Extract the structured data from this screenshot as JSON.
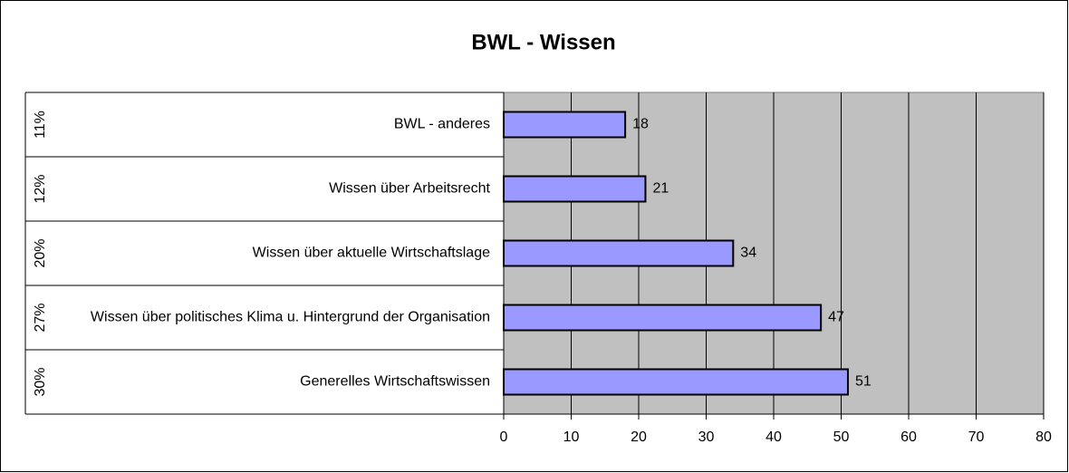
{
  "chart_data": {
    "type": "bar",
    "orientation": "horizontal",
    "title": "BWL - Wissen",
    "categories": [
      "BWL - anderes",
      "Wissen über Arbeitsrecht",
      "Wissen über aktuelle Wirtschaftslage",
      "Wissen über politisches Klima u. Hintergrund der Organisation",
      "Generelles Wirtschaftswissen"
    ],
    "group_labels": [
      "11%",
      "12%",
      "20%",
      "27%",
      "30%"
    ],
    "values": [
      18,
      21,
      34,
      47,
      51
    ],
    "color": "#9999ff",
    "xlim": [
      0,
      80
    ],
    "xticks": [
      0,
      10,
      20,
      30,
      40,
      50,
      60,
      70,
      80
    ],
    "grid": true,
    "plot_background": "#c0c0c0"
  }
}
